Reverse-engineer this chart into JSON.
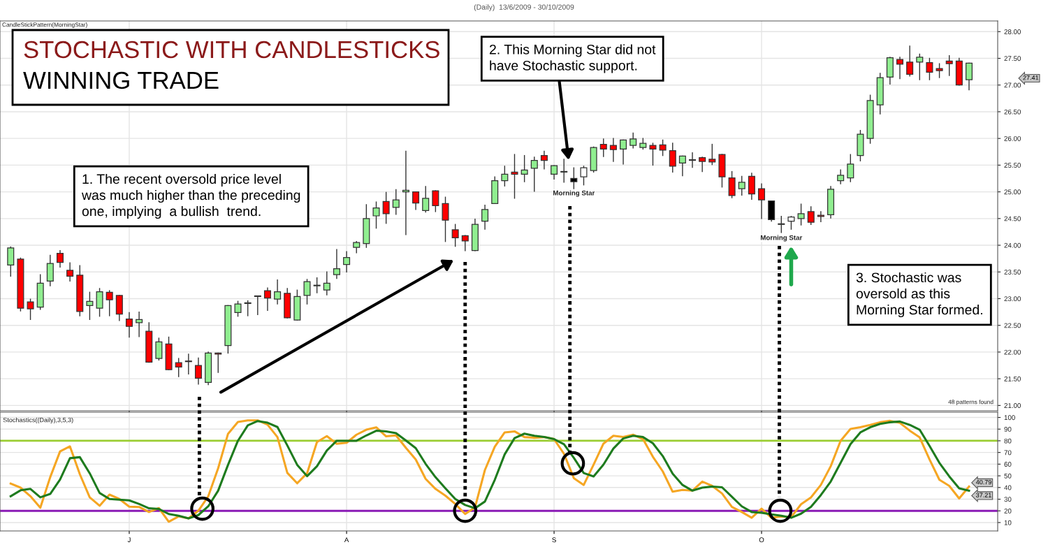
{
  "chart_data": [
    {
      "type": "candlestick",
      "title": "STOCHASTIC WITH CANDLESTICKS",
      "subtitle": "WINNING TRADE",
      "categories": [
        null,
        null,
        null,
        null,
        null,
        null,
        null,
        null,
        null,
        null,
        null,
        null,
        null,
        null,
        null,
        null,
        null,
        null,
        null,
        null,
        null,
        null,
        null,
        null,
        null,
        null,
        null,
        null,
        null,
        null,
        null,
        null,
        null,
        null,
        null,
        null,
        null,
        null,
        null,
        null,
        null,
        null,
        null,
        null,
        null,
        null,
        null,
        null,
        null,
        null,
        null,
        null,
        null,
        null,
        null,
        null,
        null,
        null,
        null,
        null,
        null,
        null,
        null,
        null,
        null,
        null,
        null,
        null,
        null,
        null,
        null,
        null,
        null,
        null,
        null,
        null,
        null,
        null,
        null,
        null,
        null,
        null,
        null,
        null,
        null,
        null,
        null,
        null,
        null,
        null,
        null,
        null,
        null,
        null,
        null,
        null,
        null,
        null
      ],
      "ohlc": [
        [
          23.63,
          23.97,
          23.42,
          23.95
        ],
        [
          23.74,
          23.76,
          22.77,
          22.82
        ],
        [
          22.94,
          22.99,
          22.61,
          22.81
        ],
        [
          22.84,
          23.45,
          22.8,
          23.29
        ],
        [
          23.33,
          23.81,
          23.24,
          23.66
        ],
        [
          23.85,
          23.9,
          23.59,
          23.68
        ],
        [
          23.53,
          23.67,
          23.33,
          23.42
        ],
        [
          23.44,
          23.62,
          22.68,
          22.76
        ],
        [
          22.87,
          23.12,
          22.61,
          22.95
        ],
        [
          22.82,
          23.19,
          22.67,
          23.13
        ],
        [
          23.12,
          23.15,
          22.68,
          22.98
        ],
        [
          23.06,
          23.06,
          22.59,
          22.71
        ],
        [
          22.62,
          22.74,
          22.28,
          22.48
        ],
        [
          22.55,
          22.75,
          22.29,
          22.61
        ],
        [
          22.39,
          22.55,
          21.81,
          21.81
        ],
        [
          21.88,
          22.26,
          21.85,
          22.19
        ],
        [
          22.15,
          22.28,
          21.67,
          21.67
        ],
        [
          21.8,
          21.88,
          21.54,
          21.72
        ],
        [
          21.83,
          21.96,
          21.59,
          21.82
        ],
        [
          21.75,
          21.89,
          21.4,
          21.51
        ],
        [
          21.43,
          22.0,
          21.39,
          21.98
        ],
        [
          21.98,
          21.98,
          21.62,
          21.96
        ],
        [
          22.12,
          22.87,
          21.98,
          22.87
        ],
        [
          22.74,
          22.95,
          22.67,
          22.9
        ],
        [
          22.91,
          22.96,
          22.68,
          22.91
        ],
        [
          23.05,
          23.05,
          22.7,
          23.04
        ],
        [
          23.15,
          23.2,
          22.78,
          23.01
        ],
        [
          22.99,
          23.35,
          22.9,
          23.13
        ],
        [
          23.1,
          23.19,
          22.64,
          22.64
        ],
        [
          22.6,
          23.16,
          22.6,
          23.04
        ],
        [
          23.06,
          23.36,
          22.9,
          23.32
        ],
        [
          23.24,
          23.39,
          23.11,
          23.24
        ],
        [
          23.16,
          23.5,
          23.07,
          23.29
        ],
        [
          23.45,
          23.92,
          23.38,
          23.56
        ],
        [
          23.64,
          23.88,
          23.5,
          23.77
        ],
        [
          23.96,
          24.07,
          23.86,
          24.05
        ],
        [
          24.03,
          24.76,
          23.96,
          24.5
        ],
        [
          24.55,
          24.81,
          24.32,
          24.7
        ],
        [
          24.82,
          24.99,
          24.41,
          24.59
        ],
        [
          24.71,
          25.04,
          24.58,
          24.85
        ],
        [
          25.0,
          25.76,
          24.2,
          25.03
        ],
        [
          25.0,
          25.0,
          24.67,
          24.79
        ],
        [
          24.65,
          25.1,
          24.62,
          24.88
        ],
        [
          25.02,
          25.02,
          24.63,
          24.74
        ],
        [
          24.78,
          24.9,
          24.07,
          24.47
        ],
        [
          24.29,
          24.39,
          23.98,
          24.14
        ],
        [
          24.18,
          24.18,
          23.9,
          24.08
        ],
        [
          23.9,
          24.49,
          23.9,
          24.39
        ],
        [
          24.45,
          24.75,
          24.3,
          24.67
        ],
        [
          24.78,
          25.28,
          24.78,
          25.21
        ],
        [
          25.21,
          25.48,
          25.11,
          25.33
        ],
        [
          25.37,
          25.7,
          24.88,
          25.33
        ],
        [
          25.33,
          25.68,
          25.19,
          25.41
        ],
        [
          25.44,
          25.65,
          25.01,
          25.59
        ],
        [
          25.68,
          25.76,
          25.43,
          25.59
        ],
        [
          25.33,
          25.49,
          25.24,
          25.49
        ],
        [
          25.37,
          25.61,
          25.18,
          25.37
        ],
        [
          25.25,
          25.45,
          25.06,
          25.19
        ],
        [
          25.28,
          25.48,
          25.13,
          25.45
        ],
        [
          25.4,
          25.84,
          25.37,
          25.83
        ],
        [
          25.89,
          25.99,
          25.66,
          25.8
        ],
        [
          25.87,
          26.0,
          25.57,
          25.79
        ],
        [
          25.8,
          25.97,
          25.52,
          25.97
        ],
        [
          25.87,
          26.1,
          25.82,
          25.99
        ],
        [
          25.83,
          26.0,
          25.8,
          25.91
        ],
        [
          25.87,
          25.91,
          25.5,
          25.8
        ],
        [
          25.88,
          25.97,
          25.68,
          25.78
        ],
        [
          25.77,
          25.91,
          25.37,
          25.48
        ],
        [
          25.54,
          25.67,
          25.3,
          25.67
        ],
        [
          25.59,
          25.73,
          25.46,
          25.59
        ],
        [
          25.64,
          25.65,
          25.38,
          25.57
        ],
        [
          25.61,
          25.89,
          25.51,
          25.56
        ],
        [
          25.7,
          25.7,
          25.09,
          25.28
        ],
        [
          25.26,
          25.38,
          24.89,
          24.93
        ],
        [
          25.06,
          25.29,
          24.94,
          25.18
        ],
        [
          25.29,
          25.35,
          24.86,
          24.96
        ],
        [
          25.06,
          25.15,
          24.5,
          24.85
        ],
        [
          24.83,
          24.83,
          24.45,
          24.48
        ],
        [
          24.39,
          24.54,
          24.24,
          24.39
        ],
        [
          24.45,
          24.54,
          24.3,
          24.53
        ],
        [
          24.5,
          24.77,
          24.38,
          24.59
        ],
        [
          24.63,
          24.72,
          24.39,
          24.43
        ],
        [
          24.56,
          24.63,
          24.44,
          24.54
        ],
        [
          24.57,
          25.1,
          24.51,
          25.05
        ],
        [
          25.21,
          25.41,
          25.15,
          25.31
        ],
        [
          25.26,
          25.7,
          25.19,
          25.52
        ],
        [
          25.68,
          26.15,
          25.58,
          26.08
        ],
        [
          26.0,
          26.81,
          25.91,
          26.71
        ],
        [
          26.63,
          27.22,
          26.46,
          27.14
        ],
        [
          27.15,
          27.52,
          27.02,
          27.51
        ],
        [
          27.48,
          27.52,
          27.12,
          27.39
        ],
        [
          27.43,
          27.73,
          27.17,
          27.2
        ],
        [
          27.43,
          27.58,
          27.1,
          27.52
        ],
        [
          27.42,
          27.5,
          27.1,
          27.24
        ],
        [
          27.31,
          27.4,
          27.14,
          27.27
        ],
        [
          27.45,
          27.55,
          27.18,
          27.4
        ],
        [
          27.45,
          27.5,
          27.0,
          27.0
        ],
        [
          27.1,
          27.41,
          26.91,
          27.41
        ]
      ],
      "colors": [
        "#90ee90",
        "#ff0000",
        "#ff0000",
        "#90ee90",
        "#90ee90",
        "#ff0000",
        "#ff0000",
        "#ff0000",
        "#90ee90",
        "#90ee90",
        "#ff0000",
        "#ff0000",
        "#ff0000",
        "#90ee90",
        "#ff0000",
        "#90ee90",
        "#ff0000",
        "#ff0000",
        "#ff0000",
        "#ff0000",
        "#90ee90",
        "#ff0000",
        "#90ee90",
        "#90ee90",
        "#90ee90",
        "#ff0000",
        "#ff0000",
        "#90ee90",
        "#ff0000",
        "#90ee90",
        "#90ee90",
        "#90ee90",
        "#90ee90",
        "#90ee90",
        "#90ee90",
        "#90ee90",
        "#90ee90",
        "#90ee90",
        "#ff0000",
        "#90ee90",
        "#90ee90",
        "#ff0000",
        "#90ee90",
        "#ff0000",
        "#ff0000",
        "#ff0000",
        "#ff0000",
        "#90ee90",
        "#90ee90",
        "#90ee90",
        "#90ee90",
        "#ff0000",
        "#90ee90",
        "#90ee90",
        "#ff0000",
        "#90ee90",
        "#90ee90",
        "#000000",
        "#ffffff",
        "#90ee90",
        "#ff0000",
        "#ff0000",
        "#90ee90",
        "#90ee90",
        "#90ee90",
        "#ff0000",
        "#ff0000",
        "#ff0000",
        "#90ee90",
        "#90ee90",
        "#ff0000",
        "#ff0000",
        "#ff0000",
        "#ff0000",
        "#90ee90",
        "#ff0000",
        "#ff0000",
        "#000000",
        "#90ee90",
        "#ffffff",
        "#90ee90",
        "#ff0000",
        "#ff0000",
        "#90ee90",
        "#90ee90",
        "#90ee90",
        "#90ee90",
        "#90ee90",
        "#90ee90",
        "#90ee90",
        "#ff0000",
        "#ff0000",
        "#90ee90",
        "#ff0000",
        "#ff0000",
        "#ff0000",
        "#ff0000",
        "#90ee90"
      ],
      "ylim": [
        20.9,
        28.2
      ],
      "yticks": [
        {
          "value": 21,
          "label": "21.00"
        },
        {
          "value": 21.5,
          "label": "21.50"
        },
        {
          "value": 22,
          "label": "22.00"
        },
        {
          "value": 22.5,
          "label": "22.50"
        },
        {
          "value": 23,
          "label": "23.00"
        },
        {
          "value": 23.5,
          "label": "23.50"
        },
        {
          "value": 24,
          "label": "24.00"
        },
        {
          "value": 24.5,
          "label": "24.50"
        },
        {
          "value": 25,
          "label": "25.00"
        },
        {
          "value": 25.5,
          "label": "25.50"
        },
        {
          "value": 26,
          "label": "26.00"
        },
        {
          "value": 26.5,
          "label": "26.50"
        },
        {
          "value": 27,
          "label": "27.00"
        },
        {
          "value": 27.5,
          "label": "27.50"
        },
        {
          "value": 28,
          "label": "28.00"
        }
      ],
      "grid": true,
      "tick_labels": "y",
      "annotations": [
        "(Daily)  13/6/2009 - 30/10/2009",
        "CandleStickPattern(MorningStar)",
        "1. The recent oversold price level\nwas much higher than the preceding\none, implying  a bullish  trend.",
        "2. This Morning Star did not\nhave Stochastic support.",
        "3. Stochastic was\noversold as this\nMorning Star formed.",
        "Morning Star",
        "Morning Star",
        "48 patterns found",
        "27.41"
      ]
    },
    {
      "type": "line",
      "title": "Stochastics((Daily),3,5,3)",
      "categories": [
        null,
        null,
        null,
        null,
        null,
        null,
        null,
        null,
        null,
        null,
        null,
        null,
        "J",
        null,
        null,
        null,
        null,
        null,
        null,
        null,
        null,
        null,
        null,
        null,
        null,
        null,
        null,
        null,
        null,
        null,
        null,
        null,
        null,
        null,
        "A",
        null,
        null,
        null,
        null,
        null,
        null,
        null,
        null,
        null,
        null,
        null,
        null,
        null,
        null,
        null,
        null,
        null,
        null,
        null,
        null,
        "S",
        null,
        null,
        null,
        null,
        null,
        null,
        null,
        null,
        null,
        null,
        null,
        null,
        null,
        null,
        null,
        null,
        null,
        null,
        null,
        null,
        "O",
        null,
        null,
        null,
        null,
        null,
        null,
        null,
        null,
        null,
        null,
        null,
        null,
        null,
        null,
        null,
        null,
        null,
        null,
        null,
        null,
        null
      ],
      "series": [
        {
          "color": "#f5a623",
          "values": [
            43.4,
            39.9,
            32.5,
            22.7,
            48.8,
            70.9,
            75.2,
            51.4,
            31.6,
            24.4,
            33.9,
            30.2,
            23.6,
            23.3,
            19.0,
            22.4,
            10.7,
            15.3,
            13.6,
            20.1,
            32.5,
            56.5,
            86.0,
            96.1,
            97.5,
            97.5,
            93.8,
            83.2,
            52.5,
            43.6,
            52.2,
            78.9,
            84.0,
            77.4,
            78.3,
            85.2,
            89.5,
            91.5,
            83.8,
            84.6,
            74.0,
            64.0,
            47.4,
            38.8,
            33.0,
            25.9,
            17.3,
            23.0,
            55,
            75,
            87.2,
            88.1,
            83.2,
            82.6,
            83.2,
            81.4,
            68.9,
            48.0,
            42.2,
            59.6,
            77.6,
            84.3,
            83.2,
            85.2,
            81.4,
            66.3,
            53.8,
            36.4,
            37.9,
            37.3,
            45.1,
            41.4,
            34.9,
            23.4,
            19.0,
            14.1,
            21.9,
            14.1,
            15.2,
            14.7,
            25.7,
            31.5,
            42.2,
            58.2,
            80.0,
            90.1,
            91.6,
            93.6,
            95.9,
            97.1,
            95.3,
            88.7,
            82.9,
            64.0,
            46.6,
            41.4,
            30.6,
            40.79
          ],
          "value_labels": [
            null,
            null,
            null,
            null,
            null,
            null,
            null,
            null,
            null,
            null,
            null,
            null,
            null,
            null,
            null,
            null,
            null,
            null,
            null,
            null,
            null,
            null,
            null,
            null,
            null,
            null,
            null,
            null,
            null,
            null,
            null,
            null,
            null,
            null,
            null,
            null,
            null,
            null,
            null,
            null,
            null,
            null,
            null,
            null,
            null,
            null,
            null,
            null,
            null,
            null,
            null,
            null,
            null,
            null,
            null,
            null,
            null,
            null,
            null,
            null,
            null,
            null,
            null,
            null,
            null,
            null,
            null,
            null,
            null,
            null,
            null,
            null,
            null,
            null,
            null,
            null,
            null,
            null,
            null,
            null,
            null,
            null,
            null,
            null,
            null,
            null,
            null,
            null,
            null,
            null,
            null,
            null,
            null,
            null,
            null,
            null,
            null,
            "40.79"
          ]
        },
        {
          "color": "#1e7b1e",
          "values": [
            32.5,
            37.6,
            38.8,
            31.6,
            34.5,
            46.8,
            65.1,
            66.0,
            52.2,
            35.3,
            30.2,
            29.6,
            29.0,
            25.9,
            22.2,
            21.6,
            17.3,
            15.8,
            13.6,
            16.4,
            23.9,
            37.3,
            59.4,
            80.0,
            93.2,
            96.9,
            95.5,
            91.8,
            76.0,
            59.4,
            49.7,
            58.2,
            71.7,
            80.0,
            80.0,
            80.0,
            84.6,
            88.6,
            88.0,
            86.6,
            80.3,
            73.7,
            60.2,
            48.8,
            39.3,
            30.2,
            25.0,
            22.2,
            28,
            46.6,
            68.4,
            82.3,
            86.1,
            84.3,
            83.2,
            81.4,
            77.1,
            65.4,
            52.4,
            49.5,
            59.6,
            73.3,
            82.0,
            84.3,
            83.2,
            77.9,
            66.9,
            51.8,
            42.2,
            37.3,
            39.9,
            40.8,
            40.2,
            32.1,
            23.9,
            19.0,
            18.4,
            17.0,
            15.8,
            14.1,
            17.6,
            23.4,
            33.5,
            45.1,
            61.1,
            77.1,
            87.2,
            91.6,
            94.5,
            95.9,
            96.5,
            93.6,
            89.5,
            75.6,
            61.1,
            49.5,
            39.3,
            37.21
          ],
          "value_labels": [
            null,
            null,
            null,
            null,
            null,
            null,
            null,
            null,
            null,
            null,
            null,
            null,
            null,
            null,
            null,
            null,
            null,
            null,
            null,
            null,
            null,
            null,
            null,
            null,
            null,
            null,
            null,
            null,
            null,
            null,
            null,
            null,
            null,
            null,
            null,
            null,
            null,
            null,
            null,
            null,
            null,
            null,
            null,
            null,
            null,
            null,
            null,
            null,
            null,
            null,
            null,
            null,
            null,
            null,
            null,
            null,
            null,
            null,
            null,
            null,
            null,
            null,
            null,
            null,
            null,
            null,
            null,
            null,
            null,
            null,
            null,
            null,
            null,
            null,
            null,
            null,
            null,
            null,
            null,
            null,
            null,
            null,
            null,
            null,
            null,
            null,
            null,
            null,
            null,
            null,
            null,
            null,
            null,
            null,
            null,
            null,
            null,
            "37.21"
          ]
        }
      ],
      "ylim": [
        2.8,
        104.5
      ],
      "yticks": [
        10,
        20,
        30,
        40,
        50,
        60,
        70,
        80,
        90,
        100
      ],
      "grid": true,
      "line_style": "solid",
      "ref_lines": [
        {
          "axis": "y",
          "value": 80,
          "color": "#9acd32"
        },
        {
          "axis": "y",
          "value": 20,
          "color": "#8a1bb5"
        }
      ],
      "marker": "none"
    }
  ]
}
